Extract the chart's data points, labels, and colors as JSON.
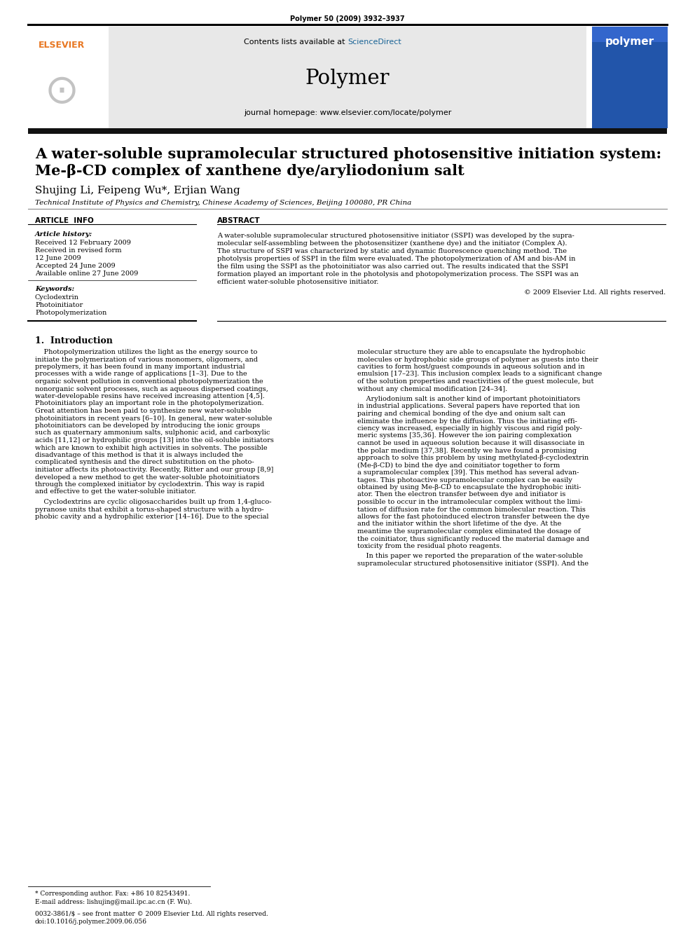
{
  "page_header_text": "Polymer 50 (2009) 3932–3937",
  "journal_name": "Polymer",
  "contents_text": "Contents lists available at ",
  "sciencedirect_text": "ScienceDirect",
  "sciencedirect_color": "#1a6496",
  "journal_homepage": "journal homepage: www.elsevier.com/locate/polymer",
  "header_bg": "#e8e8e8",
  "dark_bar_color": "#1a1a1a",
  "title_line1": "A water-soluble supramolecular structured photosensitive initiation system:",
  "title_line2": "Me-β-CD complex of xanthene dye/aryliodonium salt",
  "authors": "Shujing Li, Feipeng Wu*, Erjian Wang",
  "affiliation": "Technical Institute of Physics and Chemistry, Chinese Academy of Sciences, Beijing 100080, PR China",
  "article_info_header": "ARTICLE  INFO",
  "abstract_header": "ABSTRACT",
  "article_history_label": "Article history:",
  "history_lines": [
    "Received 12 February 2009",
    "Received in revised form",
    "12 June 2009",
    "Accepted 24 June 2009",
    "Available online 27 June 2009"
  ],
  "keywords_label": "Keywords:",
  "keywords": [
    "Cyclodextrin",
    "Photoinitiator",
    "Photopolymerization"
  ],
  "abstract_text": "A water-soluble supramolecular structured photosensitive initiator (SSPI) was developed by the supra-\nmolecular self-assembling between the photosensitizer (xanthene dye) and the initiator (Complex A).\nThe structure of SSPI was characterized by static and dynamic fluorescence quenching method. The\nphotolysis properties of SSPI in the film were evaluated. The photopolymerization of AM and bis-AM in\nthe film using the SSPI as the photoinitiator was also carried out. The results indicated that the SSPI\nformation played an important role in the photolysis and photopolymerization process. The SSPI was an\nefficient water-soluble photosensitive initiator.",
  "copyright_text": "© 2009 Elsevier Ltd. All rights reserved.",
  "section1_header": "1.  Introduction",
  "intro_col1_para1": "    Photopolymerization utilizes the light as the energy source to\ninitiate the polymerization of various monomers, oligomers, and\nprepolymers, it has been found in many important industrial\nprocesses with a wide range of applications [1–3]. Due to the\norganic solvent pollution in conventional photopolymerization the\nnonorganic solvent processes, such as aqueous dispersed coatings,\nwater-developable resins have received increasing attention [4,5].\nPhotoinitiators play an important role in the photopolymerization.\nGreat attention has been paid to synthesize new water-soluble\nphotoinitiators in recent years [6–10]. In general, new water-soluble\nphotoinitiators can be developed by introducing the ionic groups\nsuch as quaternary ammonium salts, sulphonic acid, and carboxylic\nacids [11,12] or hydrophilic groups [13] into the oil-soluble initiators\nwhich are known to exhibit high activities in solvents. The possible\ndisadvantage of this method is that it is always included the\ncomplicated synthesis and the direct substitution on the photo-\ninitiator affects its photoactivity. Recently, Ritter and our group [8,9]\ndeveloped a new method to get the water-soluble photoinitiators\nthrough the complexed initiator by cyclodextrin. This way is rapid\nand effective to get the water-soluble initiator.",
  "intro_col1_para2": "    Cyclodextrins are cyclic oligosaccharides built up from 1,4-gluco-\npyranose units that exhibit a torus-shaped structure with a hydro-\nphobic cavity and a hydrophilic exterior [14–16]. Due to the special",
  "intro_col2_para1": "molecular structure they are able to encapsulate the hydrophobic\nmolecules or hydrophobic side groups of polymer as guests into their\ncavities to form host/guest compounds in aqueous solution and in\nemulsion [17–23]. This inclusion complex leads to a significant change\nof the solution properties and reactivities of the guest molecule, but\nwithout any chemical modification [24–34].",
  "intro_col2_para2": "    Aryliodonium salt is another kind of important photoinitiators\nin industrial applications. Several papers have reported that ion\npairing and chemical bonding of the dye and onium salt can\neliminate the influence by the diffusion. Thus the initiating effi-\nciency was increased, especially in highly viscous and rigid poly-\nmeric systems [35,36]. However the ion pairing complexation\ncannot be used in aqueous solution because it will disassociate in\nthe polar medium [37,38]. Recently we have found a promising\napproach to solve this problem by using methylated-β-cyclodextrin\n(Me-β-CD) to bind the dye and coinitiator together to form\na supramolecular complex [39]. This method has several advan-\ntages. This photoactive supramolecular complex can be easily\nobtained by using Me-β-CD to encapsulate the hydrophobic initi-\nator. Then the electron transfer between dye and initiator is\npossible to occur in the intramolecular complex without the limi-\ntation of diffusion rate for the common bimolecular reaction. This\nallows for the fast photoinduced electron transfer between the dye\nand the initiator within the short lifetime of the dye. At the\nmeantime the supramolecular complex eliminated the dosage of\nthe coinitiator, thus significantly reduced the material damage and\ntoxicity from the residual photo reagents.",
  "intro_col2_para3": "    In this paper we reported the preparation of the water-soluble\nsupramolecular structured photosensitive initiator (SSPI). And the",
  "footnote1": "* Corresponding author. Fax: +86 10 82543491.",
  "footnote2": "E-mail address: lishujing@mail.ipc.ac.cn (F. Wu).",
  "bottom_line1": "0032-3861/$ – see front matter © 2009 Elsevier Ltd. All rights reserved.",
  "bottom_line2": "doi:10.1016/j.polymer.2009.06.056",
  "elsevier_color": "#e87722",
  "bg_color": "#ffffff"
}
